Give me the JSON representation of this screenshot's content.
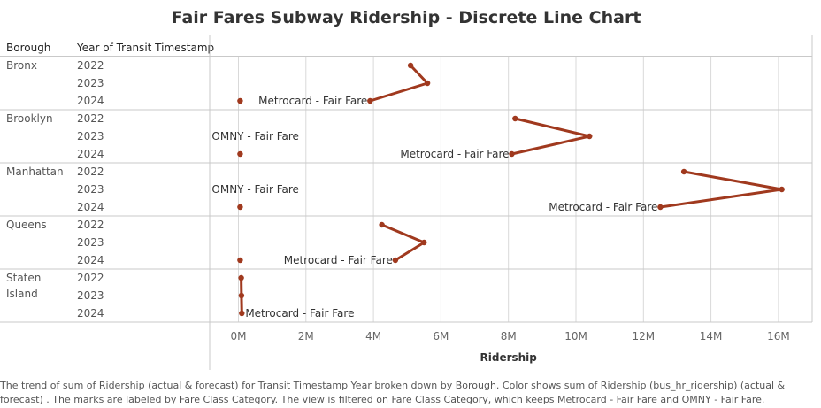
{
  "title": "Fair Fares Subway Ridership - Discrete Line Chart",
  "headers": {
    "borough": "Borough",
    "year": "Year of Transit Timestamp"
  },
  "caption": "The trend of sum of Ridership (actual & forecast)  for Transit Timestamp Year broken down by Borough.  Color shows sum of Ridership (bus_hr_ridership) (actual & forecast) .  The marks are labeled by Fare Class Category. The view is filtered on Fare Class Category, which keeps Metrocard - Fair Fare and OMNY - Fair Fare.",
  "colors": {
    "line": "#a0391e",
    "grid": "#d9d9d9",
    "separator": "#c9c9c9"
  },
  "chart_data": {
    "type": "line",
    "xlabel": "Ridership",
    "xlim": [
      0,
      16700000
    ],
    "xticks": [
      0,
      2000000,
      4000000,
      6000000,
      8000000,
      10000000,
      12000000,
      14000000,
      16000000
    ],
    "xtick_labels": [
      "0M",
      "2M",
      "4M",
      "6M",
      "8M",
      "10M",
      "12M",
      "14M",
      "16M"
    ],
    "grid": true,
    "years": [
      "2022",
      "2023",
      "2024"
    ],
    "boroughs": [
      {
        "name": "Bronx",
        "series": [
          {
            "name": "Metrocard - Fair Fare",
            "values": [
              5100000,
              5600000,
              3900000
            ],
            "label": "Metrocard - Fair Fare",
            "label_year": "2024"
          },
          {
            "name": "OMNY - Fair Fare",
            "values": [
              null,
              null,
              50000
            ],
            "label": "",
            "label_year": "2024"
          }
        ]
      },
      {
        "name": "Brooklyn",
        "series": [
          {
            "name": "Metrocard - Fair Fare",
            "values": [
              8200000,
              10400000,
              8100000
            ],
            "label": "Metrocard - Fair Fare",
            "label_year": "2024"
          },
          {
            "name": "OMNY - Fair Fare",
            "values": [
              null,
              null,
              50000
            ],
            "label": "OMNY - Fair Fare",
            "label_year": "2023"
          }
        ]
      },
      {
        "name": "Manhattan",
        "series": [
          {
            "name": "Metrocard - Fair Fare",
            "values": [
              13200000,
              16100000,
              12500000
            ],
            "label": "Metrocard - Fair Fare",
            "label_year": "2024"
          },
          {
            "name": "OMNY - Fair Fare",
            "values": [
              null,
              null,
              50000
            ],
            "label": "OMNY - Fair Fare",
            "label_year": "2023"
          }
        ]
      },
      {
        "name": "Queens",
        "series": [
          {
            "name": "Metrocard - Fair Fare",
            "values": [
              4250000,
              5500000,
              4650000
            ],
            "label": "Metrocard - Fair Fare",
            "label_year": "2024"
          },
          {
            "name": "OMNY - Fair Fare",
            "values": [
              null,
              null,
              50000
            ],
            "label": "",
            "label_year": "2024"
          }
        ]
      },
      {
        "name": "Staten\nIsland",
        "series": [
          {
            "name": "Metrocard - Fair Fare",
            "values": [
              80000,
              90000,
              100000
            ],
            "label": "Metrocard - Fair Fare",
            "label_year": "2024"
          }
        ]
      }
    ]
  }
}
